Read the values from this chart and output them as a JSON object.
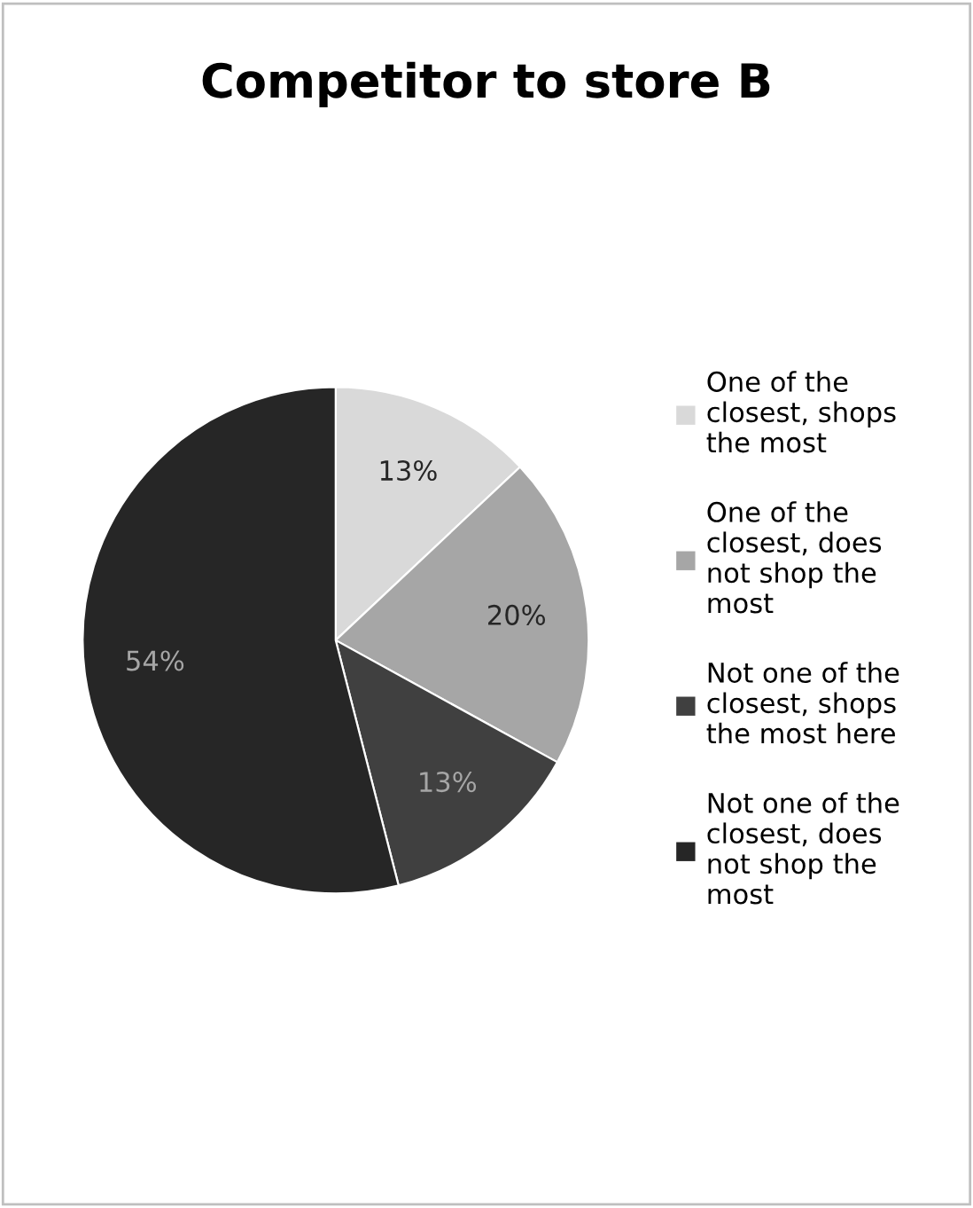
{
  "chart_data": {
    "type": "pie",
    "title": "Competitor to store B",
    "categories": [
      "One of the closest, shops the most",
      "One of the closest, does not shop the most",
      "Not one of the closest, shops the most here",
      "Not one of the closest, does not shop the most"
    ],
    "values": [
      13,
      20,
      13,
      54
    ],
    "colors": [
      "#d9d9d9",
      "#a6a6a6",
      "#404040",
      "#262626"
    ],
    "value_labels": [
      "13%",
      "20%",
      "13%",
      "54%"
    ],
    "legend": "right"
  }
}
